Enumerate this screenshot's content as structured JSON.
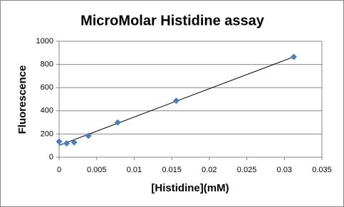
{
  "chart_data": {
    "type": "scatter",
    "title": "MicroMolar Histidine assay",
    "x_label": "[Histidine](mM)",
    "y_label": "Fluorescence",
    "x": [
      0,
      0.001,
      0.002,
      0.0039,
      0.0078,
      0.0156,
      0.03125
    ],
    "values": [
      135,
      120,
      128,
      185,
      300,
      487,
      865
    ],
    "color": "#4a7ebb",
    "trendline": true,
    "trendline_color": "#000000",
    "xlim": [
      0,
      0.035
    ],
    "xticks": [
      0,
      0.005,
      0.01,
      0.015,
      0.02,
      0.025,
      0.03,
      0.035
    ],
    "ylim": [
      0,
      1000
    ],
    "yticks": [
      0,
      200,
      400,
      600,
      800,
      1000
    ],
    "grid": true
  }
}
